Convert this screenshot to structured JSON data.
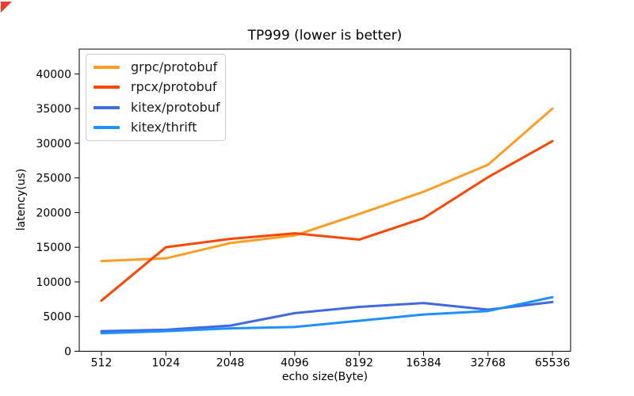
{
  "chart_data": {
    "type": "line",
    "title": "TP999 (lower is better)",
    "xlabel": "echo size(Byte)",
    "ylabel": "latency(us)",
    "categories": [
      "512",
      "1024",
      "2048",
      "4096",
      "8192",
      "16384",
      "32768",
      "65536"
    ],
    "y_ticks": [
      0,
      5000,
      10000,
      15000,
      20000,
      25000,
      30000,
      35000,
      40000
    ],
    "ylim": [
      0,
      43600
    ],
    "grid": false,
    "legend_position": "upper-left",
    "series": [
      {
        "name": "grpc/protobuf",
        "color": "#FF9D23",
        "values": [
          13000,
          13400,
          15600,
          16700,
          19800,
          23000,
          26900,
          35000
        ]
      },
      {
        "name": "rpcx/protobuf",
        "color": "#FF4500",
        "values": [
          7300,
          15000,
          16200,
          17000,
          16100,
          19200,
          25100,
          30300
        ]
      },
      {
        "name": "kitex/protobuf",
        "color": "#4169E1",
        "values": [
          2900,
          3100,
          3700,
          5500,
          6400,
          6950,
          6000,
          7100
        ]
      },
      {
        "name": "kitex/thrift",
        "color": "#1E90FF",
        "values": [
          2600,
          2900,
          3300,
          3500,
          4400,
          5300,
          5800,
          7800
        ]
      }
    ]
  },
  "corner_marker": {
    "color": "#EE3B2C",
    "name": "red-corner-flag"
  }
}
